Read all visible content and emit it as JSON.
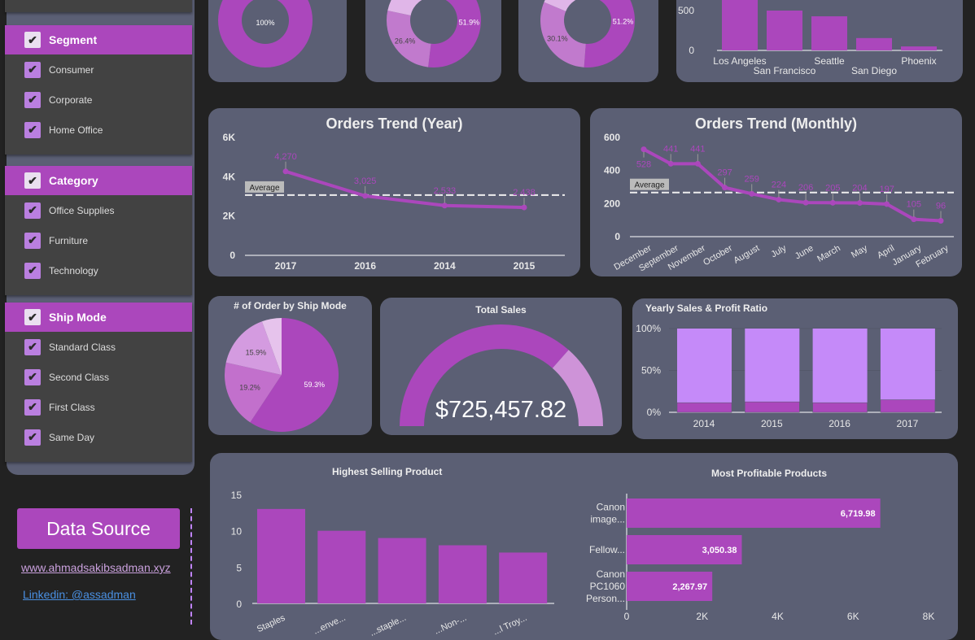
{
  "colors": {
    "accent": "#ab47bc",
    "panel": "#5b5f74",
    "light": "#c58af9",
    "mid": "#c17acd",
    "pale": "#e0b6e8"
  },
  "filters": [
    {
      "title": "Segment",
      "items": [
        "Consumer",
        "Corporate",
        "Home Office"
      ]
    },
    {
      "title": "Category",
      "items": [
        "Office Supplies",
        "Furniture",
        "Technology"
      ]
    },
    {
      "title": "Ship Mode",
      "items": [
        "Standard Class",
        "Second Class",
        "First Class",
        "Same Day"
      ]
    }
  ],
  "check_icon": "✔",
  "data_source": {
    "button": "Data Source",
    "website": "www.ahmadsakibsadman.xyz",
    "linkedin": "Linkedin: @assadman"
  },
  "chart_data": [
    {
      "id": "donut1",
      "type": "pie",
      "donut": true,
      "values": [
        100
      ],
      "labels": [
        "100%"
      ]
    },
    {
      "id": "donut2",
      "type": "pie",
      "donut": true,
      "values": [
        51.9,
        26.4,
        21.7
      ],
      "labels": [
        "51.9%",
        "26.4%",
        ""
      ]
    },
    {
      "id": "donut3",
      "type": "pie",
      "donut": true,
      "values": [
        51.2,
        30.1,
        18.7
      ],
      "labels": [
        "51.2%",
        "30.1%",
        ""
      ]
    },
    {
      "id": "city",
      "type": "bar",
      "categories": [
        "Los Angeles",
        "San Francisco",
        "Seattle",
        "San Diego",
        "Phoenix"
      ],
      "values": [
        760,
        500,
        428,
        155,
        50
      ],
      "yticks": [
        "0",
        "500"
      ]
    },
    {
      "id": "year",
      "type": "line",
      "title": "Orders Trend (Year)",
      "categories": [
        "2017",
        "2016",
        "2014",
        "2015"
      ],
      "values": [
        4270,
        3025,
        2533,
        2438
      ],
      "value_labels": [
        "4,270",
        "3,025",
        "2,533",
        "2,438"
      ],
      "ylim": [
        0,
        6000
      ],
      "yticks": [
        "0",
        "2K",
        "4K",
        "6K"
      ],
      "average": 3066,
      "average_label": "Average"
    },
    {
      "id": "month",
      "type": "line",
      "title": "Orders Trend (Monthly)",
      "categories": [
        "December",
        "September",
        "November",
        "October",
        "August",
        "July",
        "June",
        "March",
        "May",
        "April",
        "January",
        "February"
      ],
      "values": [
        528,
        441,
        441,
        297,
        259,
        224,
        206,
        205,
        204,
        197,
        105,
        96
      ],
      "ylim": [
        0,
        600
      ],
      "yticks": [
        "0",
        "200",
        "400",
        "600"
      ],
      "average": 267,
      "average_label": "Average"
    },
    {
      "id": "ship",
      "type": "pie",
      "title": "# of Order by Ship Mode",
      "values": [
        59.3,
        19.2,
        15.9,
        5.6
      ],
      "labels": [
        "59.3%",
        "19.2%",
        "15.9%",
        ""
      ]
    },
    {
      "id": "sales",
      "type": "gauge",
      "title": "Total Sales",
      "value_label": "$725,457.82",
      "fill": 0.73
    },
    {
      "id": "ratio",
      "type": "bar",
      "stacked": true,
      "title": "Yearly Sales & Profit Ratio",
      "categories": [
        "2014",
        "2015",
        "2016",
        "2017"
      ],
      "profit_pct": [
        11.5,
        12.5,
        11.5,
        15
      ],
      "yticks": [
        "0%",
        "50%",
        "100%"
      ]
    },
    {
      "id": "top",
      "type": "bar",
      "title": "Highest Selling Product",
      "categories": [
        "Staples",
        "...enve...",
        "...staple...",
        "...Non-...",
        "...l Troy..."
      ],
      "values": [
        13,
        10,
        9,
        8,
        7
      ],
      "ylim": [
        0,
        15
      ],
      "yticks": [
        "0",
        "5",
        "10",
        "15"
      ]
    },
    {
      "id": "profit",
      "type": "bar",
      "orientation": "horizontal",
      "title": "Most Profitable Products",
      "categories": [
        [
          "Canon",
          "image..."
        ],
        [
          "Fellow..."
        ],
        [
          "Canon",
          "PC1060",
          "Person..."
        ]
      ],
      "values": [
        6719.98,
        3050.38,
        2267.97
      ],
      "value_labels": [
        "6,719.98",
        "3,050.38",
        "2,267.97"
      ],
      "xlim": [
        0,
        8000
      ],
      "xticks": [
        "0",
        "2K",
        "4K",
        "6K",
        "8K"
      ]
    }
  ]
}
